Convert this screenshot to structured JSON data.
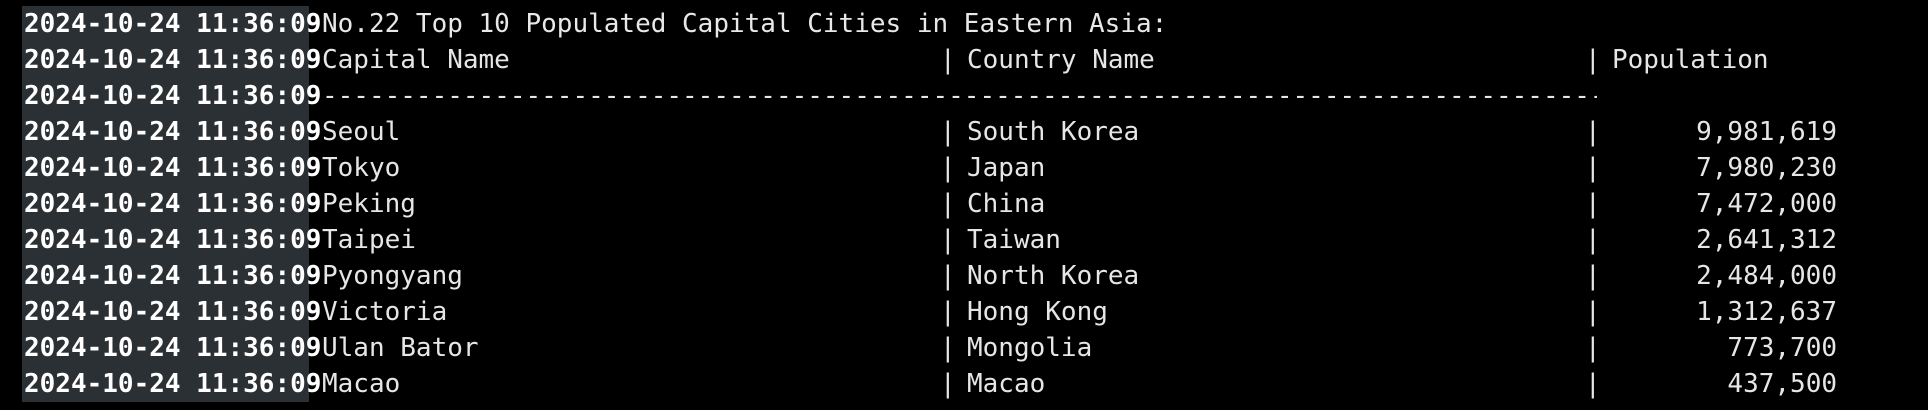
{
  "terminal": {
    "timestamp": "2024-10-24 11:36:09",
    "title_line": "No.22 Top 10 Populated Capital Cities in Eastern Asia:",
    "headers": {
      "capital": "Capital Name",
      "country": "Country Name",
      "population": "Population"
    },
    "separator_char": "|",
    "dash_line": "-------------------------------------------------------------------------------------------------------------------------------------------------",
    "rows": [
      {
        "capital": "Seoul",
        "country": "South Korea",
        "population": "9,981,619"
      },
      {
        "capital": "Tokyo",
        "country": "Japan",
        "population": "7,980,230"
      },
      {
        "capital": "Peking",
        "country": "China",
        "population": "7,472,000"
      },
      {
        "capital": "Taipei",
        "country": "Taiwan",
        "population": "2,641,312"
      },
      {
        "capital": "Pyongyang",
        "country": "North Korea",
        "population": "2,484,000"
      },
      {
        "capital": "Victoria",
        "country": "Hong Kong",
        "population": "1,312,637"
      },
      {
        "capital": "Ulan Bator",
        "country": "Mongolia",
        "population": "773,700"
      },
      {
        "capital": "Macao",
        "country": "Macao",
        "population": "437,500"
      }
    ]
  }
}
